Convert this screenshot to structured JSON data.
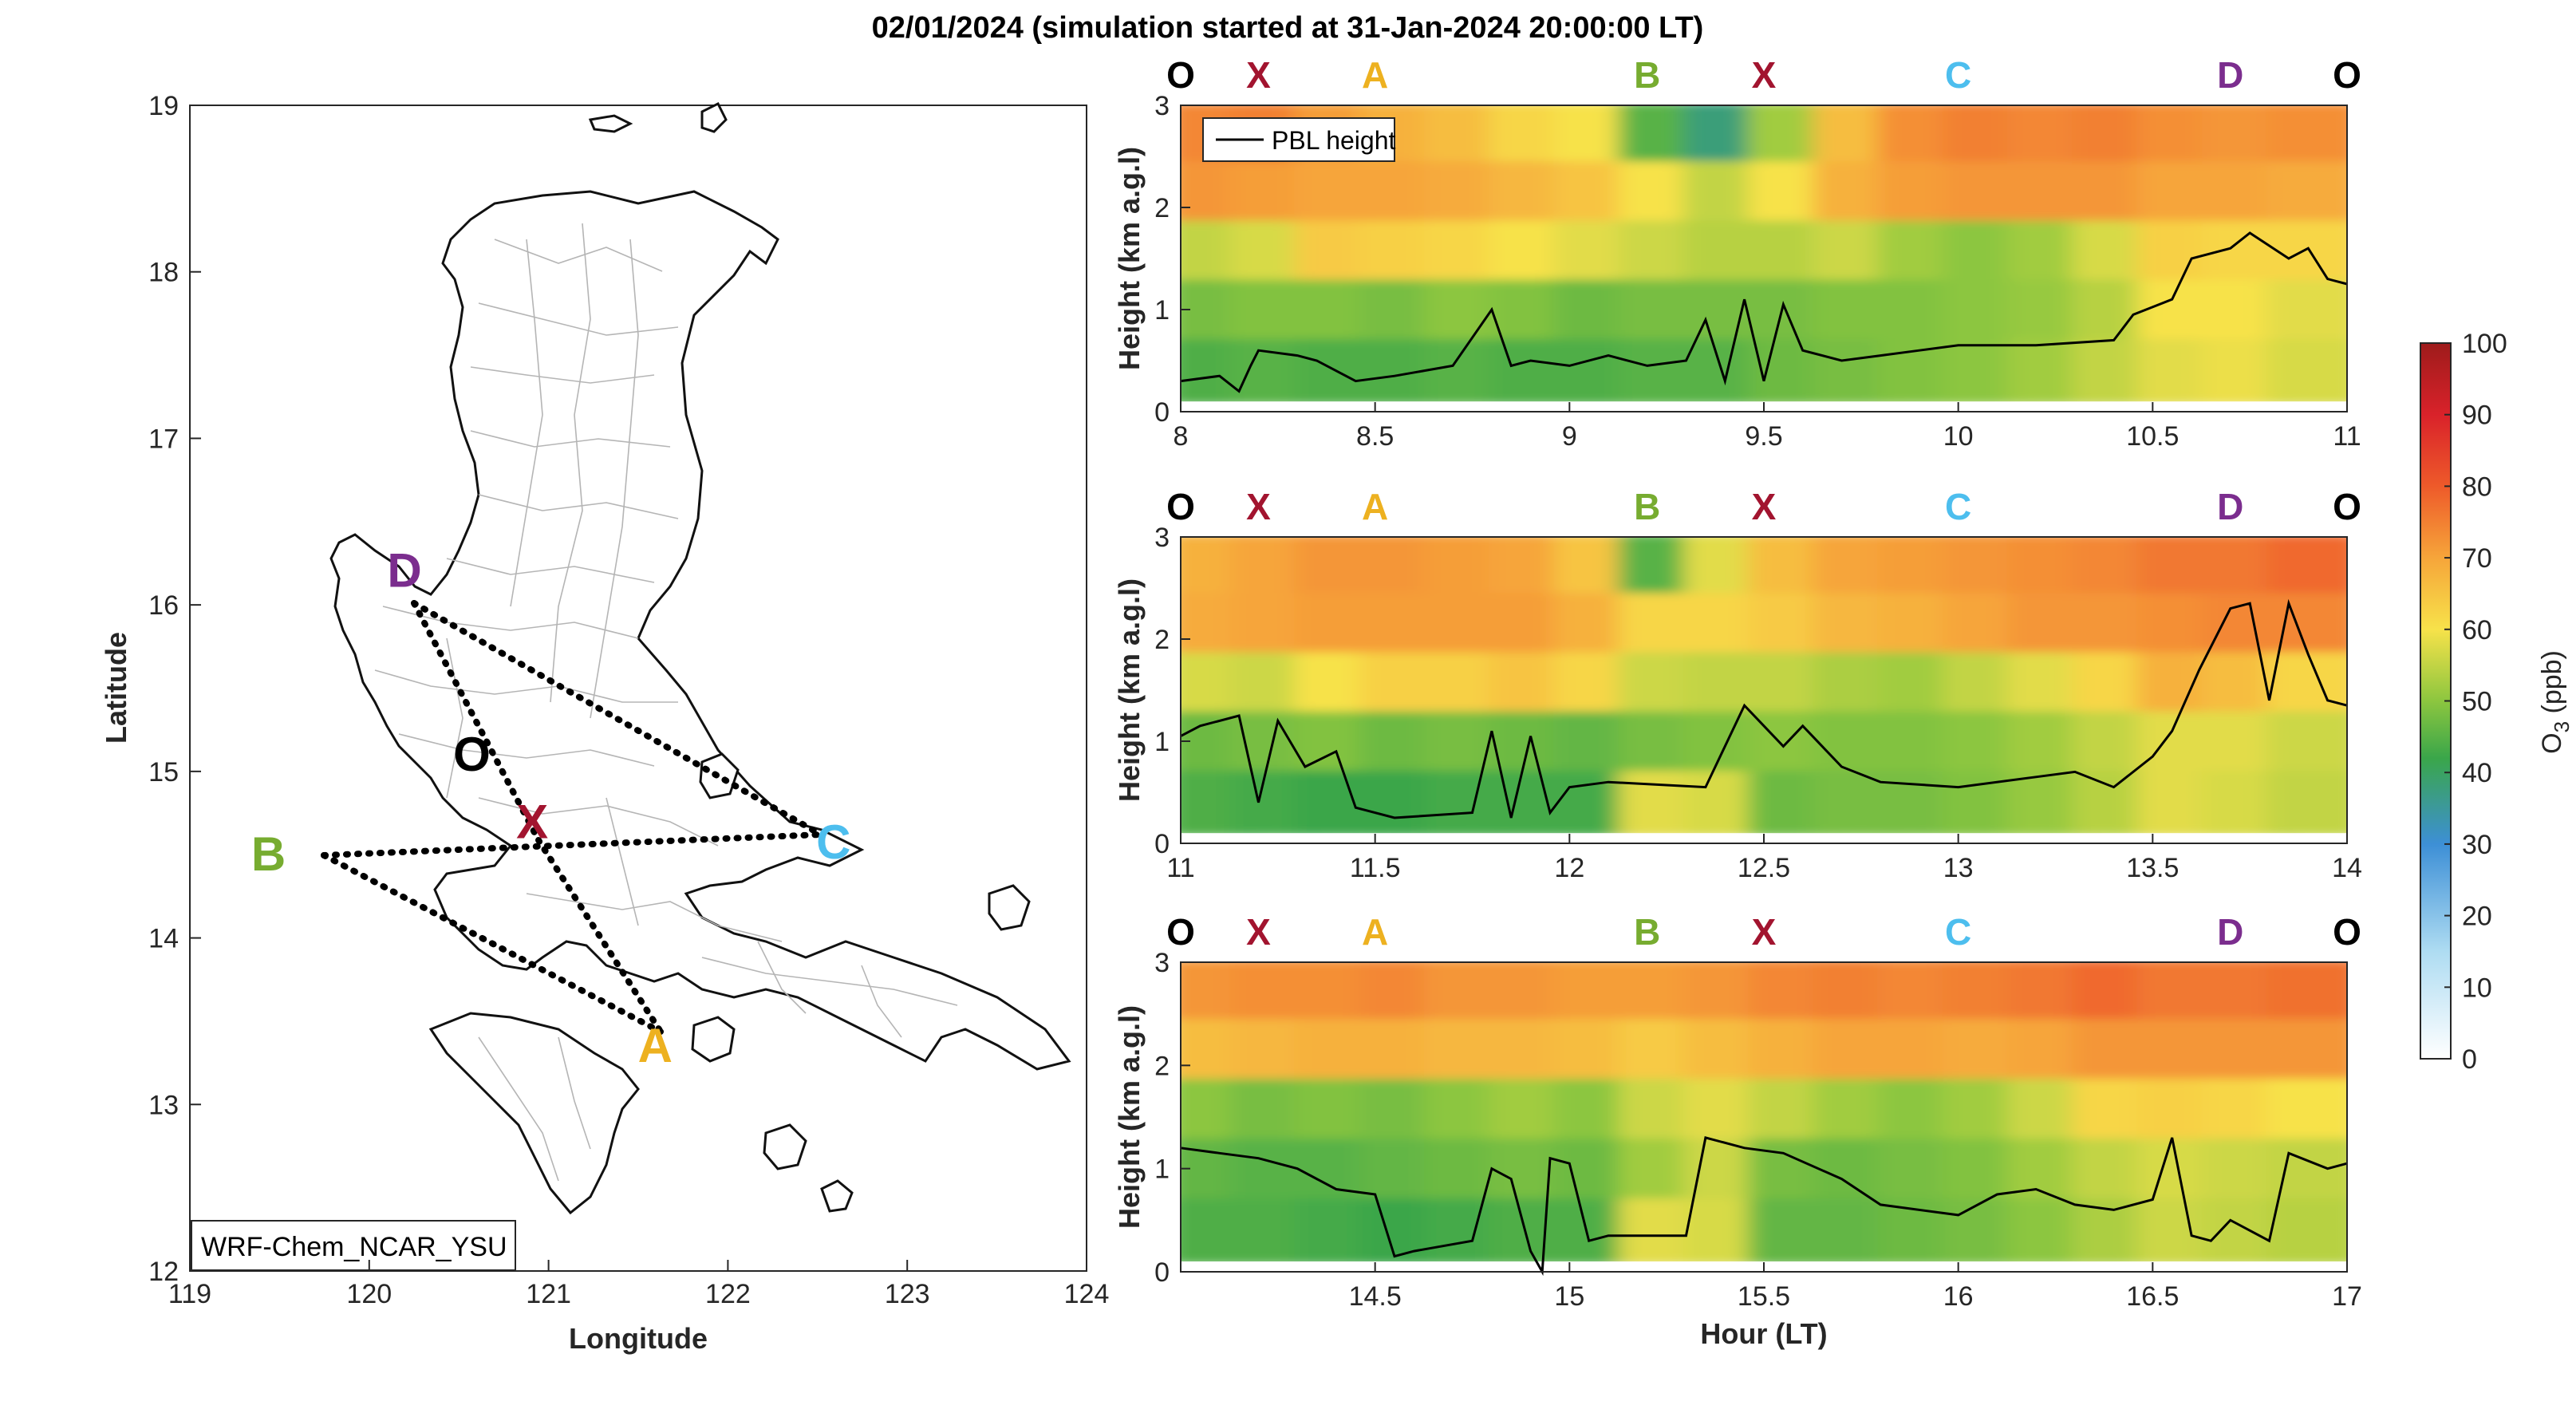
{
  "title": "02/01/2024 (simulation started at 31-Jan-2024 20:00:00 LT)",
  "map": {
    "xlabel": "Longitude",
    "ylabel": "Latitude",
    "xlim": [
      119,
      124
    ],
    "ylim": [
      12,
      19
    ],
    "xticks": [
      "119",
      "120",
      "121",
      "122",
      "123",
      "124"
    ],
    "yticks": [
      "12",
      "13",
      "14",
      "15",
      "16",
      "17",
      "18",
      "19"
    ],
    "model_label": "WRF-Chem_NCAR_YSU",
    "points": [
      {
        "name": "D",
        "color": "#7B2D8E",
        "lon": 120.25,
        "lat": 16.05
      },
      {
        "name": "O",
        "color": "#000000",
        "lon": 120.75,
        "lat": 15.1
      },
      {
        "name": "X",
        "color": "#A2142F",
        "lon": 121.02,
        "lat": 14.6
      },
      {
        "name": "B",
        "color": "#77AC30",
        "lon": 119.75,
        "lat": 14.5
      },
      {
        "name": "C",
        "color": "#4DBEEE",
        "lon": 122.5,
        "lat": 14.62
      },
      {
        "name": "A",
        "color": "#EDB120",
        "lon": 121.55,
        "lat": 13.4
      }
    ]
  },
  "chart_data": [
    {
      "type": "heatmap",
      "xlim": [
        8,
        11
      ],
      "xticks": [
        "8",
        "8.5",
        "9",
        "9.5",
        "10",
        "10.5",
        "11"
      ],
      "ylim": [
        0,
        3
      ],
      "yticks": [
        "0",
        "1",
        "2",
        "3"
      ],
      "ylabel": "Height (km a.g.l)",
      "legend": "PBL height",
      "legend_position": "top-left",
      "pbl_x": [
        8.0,
        8.1,
        8.15,
        8.18,
        8.2,
        8.3,
        8.35,
        8.45,
        8.55,
        8.7,
        8.8,
        8.85,
        8.9,
        9.0,
        9.1,
        9.2,
        9.3,
        9.35,
        9.4,
        9.45,
        9.5,
        9.55,
        9.6,
        9.7,
        9.8,
        9.9,
        10.0,
        10.2,
        10.4,
        10.45,
        10.55,
        10.6,
        10.7,
        10.75,
        10.85,
        10.9,
        10.95,
        11.0
      ],
      "pbl_y": [
        0.3,
        0.35,
        0.2,
        0.45,
        0.6,
        0.55,
        0.5,
        0.3,
        0.35,
        0.45,
        1.0,
        0.45,
        0.5,
        0.45,
        0.55,
        0.45,
        0.5,
        0.9,
        0.3,
        1.1,
        0.3,
        1.05,
        0.6,
        0.5,
        0.55,
        0.6,
        0.65,
        0.65,
        0.7,
        0.95,
        1.1,
        1.5,
        1.6,
        1.75,
        1.5,
        1.6,
        1.3,
        1.25
      ],
      "ozone_ppb": [
        [
          74,
          75,
          71,
          68,
          66,
          62,
          60,
          45,
          38,
          52,
          66,
          73,
          75,
          74,
          75,
          73,
          72,
          73
        ],
        [
          72,
          71,
          70,
          70,
          69,
          67,
          65,
          60,
          55,
          60,
          68,
          71,
          72,
          72,
          72,
          70,
          70,
          69
        ],
        [
          55,
          57,
          64,
          63,
          62,
          60,
          58,
          56,
          54,
          54,
          56,
          52,
          50,
          52,
          57,
          63,
          62,
          62
        ],
        [
          48,
          49,
          49,
          48,
          50,
          49,
          47,
          48,
          48,
          48,
          49,
          49,
          50,
          51,
          54,
          60,
          60,
          58
        ],
        [
          44,
          45,
          44,
          44,
          45,
          44,
          44,
          45,
          45,
          47,
          48,
          49,
          50,
          52,
          55,
          58,
          59,
          57
        ]
      ],
      "letters": [
        "O",
        "X",
        "A",
        "B",
        "X",
        "C",
        "D",
        "O"
      ],
      "letters_x": [
        8.0,
        8.2,
        8.5,
        9.2,
        9.5,
        10.0,
        10.7,
        11.0
      ]
    },
    {
      "type": "heatmap",
      "xlim": [
        11,
        14
      ],
      "xticks": [
        "11",
        "11.5",
        "12",
        "12.5",
        "13",
        "13.5",
        "14"
      ],
      "ylim": [
        0,
        3
      ],
      "yticks": [
        "0",
        "1",
        "2",
        "3"
      ],
      "ylabel": "Height (km a.g.l)",
      "pbl_x": [
        11.0,
        11.05,
        11.15,
        11.2,
        11.25,
        11.32,
        11.4,
        11.45,
        11.55,
        11.75,
        11.8,
        11.85,
        11.9,
        11.95,
        12.0,
        12.1,
        12.35,
        12.45,
        12.55,
        12.6,
        12.7,
        12.8,
        13.0,
        13.2,
        13.3,
        13.4,
        13.5,
        13.55,
        13.62,
        13.7,
        13.75,
        13.8,
        13.85,
        13.9,
        13.95,
        14.0
      ],
      "pbl_y": [
        1.05,
        1.15,
        1.25,
        0.4,
        1.2,
        0.75,
        0.9,
        0.35,
        0.25,
        0.3,
        1.1,
        0.25,
        1.05,
        0.3,
        0.55,
        0.6,
        0.55,
        1.35,
        0.95,
        1.15,
        0.75,
        0.6,
        0.55,
        0.65,
        0.7,
        0.55,
        0.85,
        1.1,
        1.7,
        2.3,
        2.35,
        1.4,
        2.35,
        1.85,
        1.4,
        1.35
      ],
      "ozone_ppb": [
        [
          68,
          70,
          72,
          72,
          71,
          70,
          65,
          45,
          58,
          66,
          70,
          71,
          72,
          73,
          74,
          76,
          76,
          78
        ],
        [
          69,
          70,
          71,
          71,
          71,
          71,
          68,
          62,
          62,
          64,
          67,
          68,
          70,
          72,
          72,
          73,
          74,
          74
        ],
        [
          57,
          56,
          60,
          63,
          63,
          65,
          62,
          56,
          55,
          55,
          53,
          52,
          55,
          58,
          62,
          68,
          66,
          62
        ],
        [
          47,
          48,
          49,
          47,
          48,
          47,
          46,
          48,
          49,
          50,
          49,
          49,
          50,
          52,
          55,
          58,
          58,
          56
        ],
        [
          44,
          43,
          42,
          42,
          43,
          43,
          43,
          58,
          57,
          47,
          48,
          48,
          49,
          51,
          54,
          58,
          57,
          55
        ]
      ],
      "letters": [
        "O",
        "X",
        "A",
        "B",
        "X",
        "C",
        "D",
        "O"
      ],
      "letters_x": [
        11.0,
        11.2,
        11.5,
        12.2,
        12.5,
        13.0,
        13.7,
        14.0
      ]
    },
    {
      "type": "heatmap",
      "xlim": [
        14,
        17
      ],
      "xticks": [
        "14.5",
        "15",
        "15.5",
        "16",
        "16.5",
        "17"
      ],
      "ylim": [
        0,
        3
      ],
      "yticks": [
        "0",
        "1",
        "2",
        "3"
      ],
      "ylabel": "Height (km a.g.l)",
      "xlabel": "Hour (LT)",
      "pbl_x": [
        14.0,
        14.1,
        14.2,
        14.3,
        14.4,
        14.5,
        14.55,
        14.6,
        14.75,
        14.8,
        14.85,
        14.9,
        14.93,
        14.95,
        15.0,
        15.05,
        15.1,
        15.3,
        15.35,
        15.45,
        15.55,
        15.7,
        15.8,
        16.0,
        16.1,
        16.2,
        16.3,
        16.4,
        16.5,
        16.55,
        16.6,
        16.65,
        16.7,
        16.8,
        16.85,
        16.95,
        17.0
      ],
      "pbl_y": [
        1.2,
        1.15,
        1.1,
        1.0,
        0.8,
        0.75,
        0.15,
        0.2,
        0.3,
        1.0,
        0.9,
        0.2,
        0.0,
        1.1,
        1.05,
        0.3,
        0.35,
        0.35,
        1.3,
        1.2,
        1.15,
        0.9,
        0.65,
        0.55,
        0.75,
        0.8,
        0.65,
        0.6,
        0.7,
        1.3,
        0.35,
        0.3,
        0.5,
        0.3,
        1.15,
        1.0,
        1.05
      ],
      "ozone_ppb": [
        [
          72,
          73,
          73,
          74,
          72,
          72,
          71,
          71,
          72,
          74,
          75,
          74,
          75,
          76,
          78,
          76,
          76,
          77
        ],
        [
          66,
          67,
          68,
          68,
          67,
          67,
          66,
          64,
          66,
          68,
          70,
          70,
          69,
          70,
          72,
          72,
          72,
          72
        ],
        [
          50,
          48,
          49,
          48,
          50,
          52,
          50,
          56,
          58,
          55,
          52,
          50,
          52,
          56,
          62,
          63,
          62,
          60
        ],
        [
          46,
          45,
          45,
          46,
          47,
          48,
          47,
          52,
          56,
          48,
          47,
          48,
          49,
          52,
          55,
          57,
          56,
          55
        ],
        [
          44,
          44,
          43,
          42,
          43,
          44,
          44,
          58,
          57,
          46,
          46,
          47,
          48,
          50,
          53,
          56,
          55,
          54
        ]
      ],
      "letters": [
        "O",
        "X",
        "A",
        "B",
        "X",
        "C",
        "D",
        "O"
      ],
      "letters_x": [
        14.0,
        14.2,
        14.5,
        15.2,
        15.5,
        16.0,
        16.7,
        17.0
      ]
    }
  ],
  "letter_colors": {
    "O": "#000000",
    "X": "#A2142F",
    "A": "#EDB120",
    "B": "#77AC30",
    "C": "#4DBEEE",
    "D": "#7B2D8E"
  },
  "colorbar": {
    "label_main": "O",
    "label_sub": "3",
    "label_unit": " (ppb)",
    "ticks": [
      "0",
      "10",
      "20",
      "30",
      "40",
      "50",
      "60",
      "70",
      "80",
      "90",
      "100"
    ],
    "lim": [
      0,
      100
    ]
  }
}
